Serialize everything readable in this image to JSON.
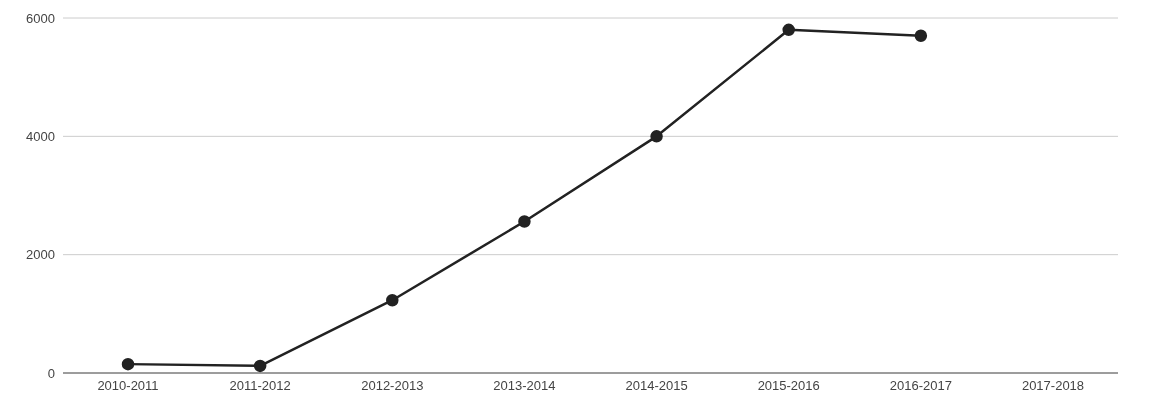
{
  "chart_data": {
    "type": "line",
    "categories": [
      "2010-2011",
      "2011-2012",
      "2012-2013",
      "2013-2014",
      "2014-2015",
      "2015-2016",
      "2016-2017",
      "2017-2018"
    ],
    "series": [
      {
        "color": "#222222",
        "values": [
          150,
          120,
          1230,
          2560,
          4000,
          5800,
          5700,
          null
        ]
      }
    ],
    "ylim": [
      0,
      6000
    ],
    "yticks": [
      0,
      2000,
      4000,
      6000
    ],
    "grid": "y",
    "marker": "circle",
    "line_style": "solid"
  }
}
